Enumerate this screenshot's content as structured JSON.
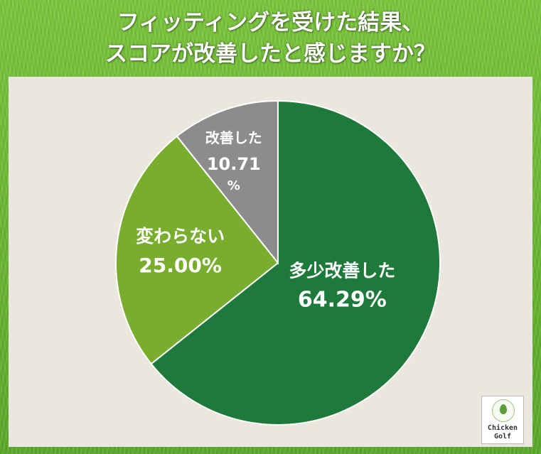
{
  "header": {
    "title_line1": "フィッティングを受けた結果、",
    "title_line2": "スコアが改善したと感じますか？"
  },
  "chart_data": {
    "type": "pie",
    "title": "フィッティングを受けた結果、スコアが改善したと感じますか？",
    "start": "12 o'clock, clockwise",
    "slices": [
      {
        "label": "多少改善した",
        "value": 64.29,
        "value_label": "64.29%",
        "color": "#1e7a3a",
        "label_color": "#ffffff"
      },
      {
        "label": "変わらない",
        "value": 25.0,
        "value_label": "25.00%",
        "color": "#79ad2e",
        "label_color": "#ffffff"
      },
      {
        "label": "改善した",
        "value": 10.71,
        "value_label": "10.71%",
        "color": "#8c8c8c",
        "label_color": "#ffffff"
      }
    ]
  },
  "logo": {
    "line1": "Chicken",
    "line2": "Golf"
  },
  "colors": {
    "panel_background": "#eae7de",
    "header_grass": "#6db634"
  }
}
